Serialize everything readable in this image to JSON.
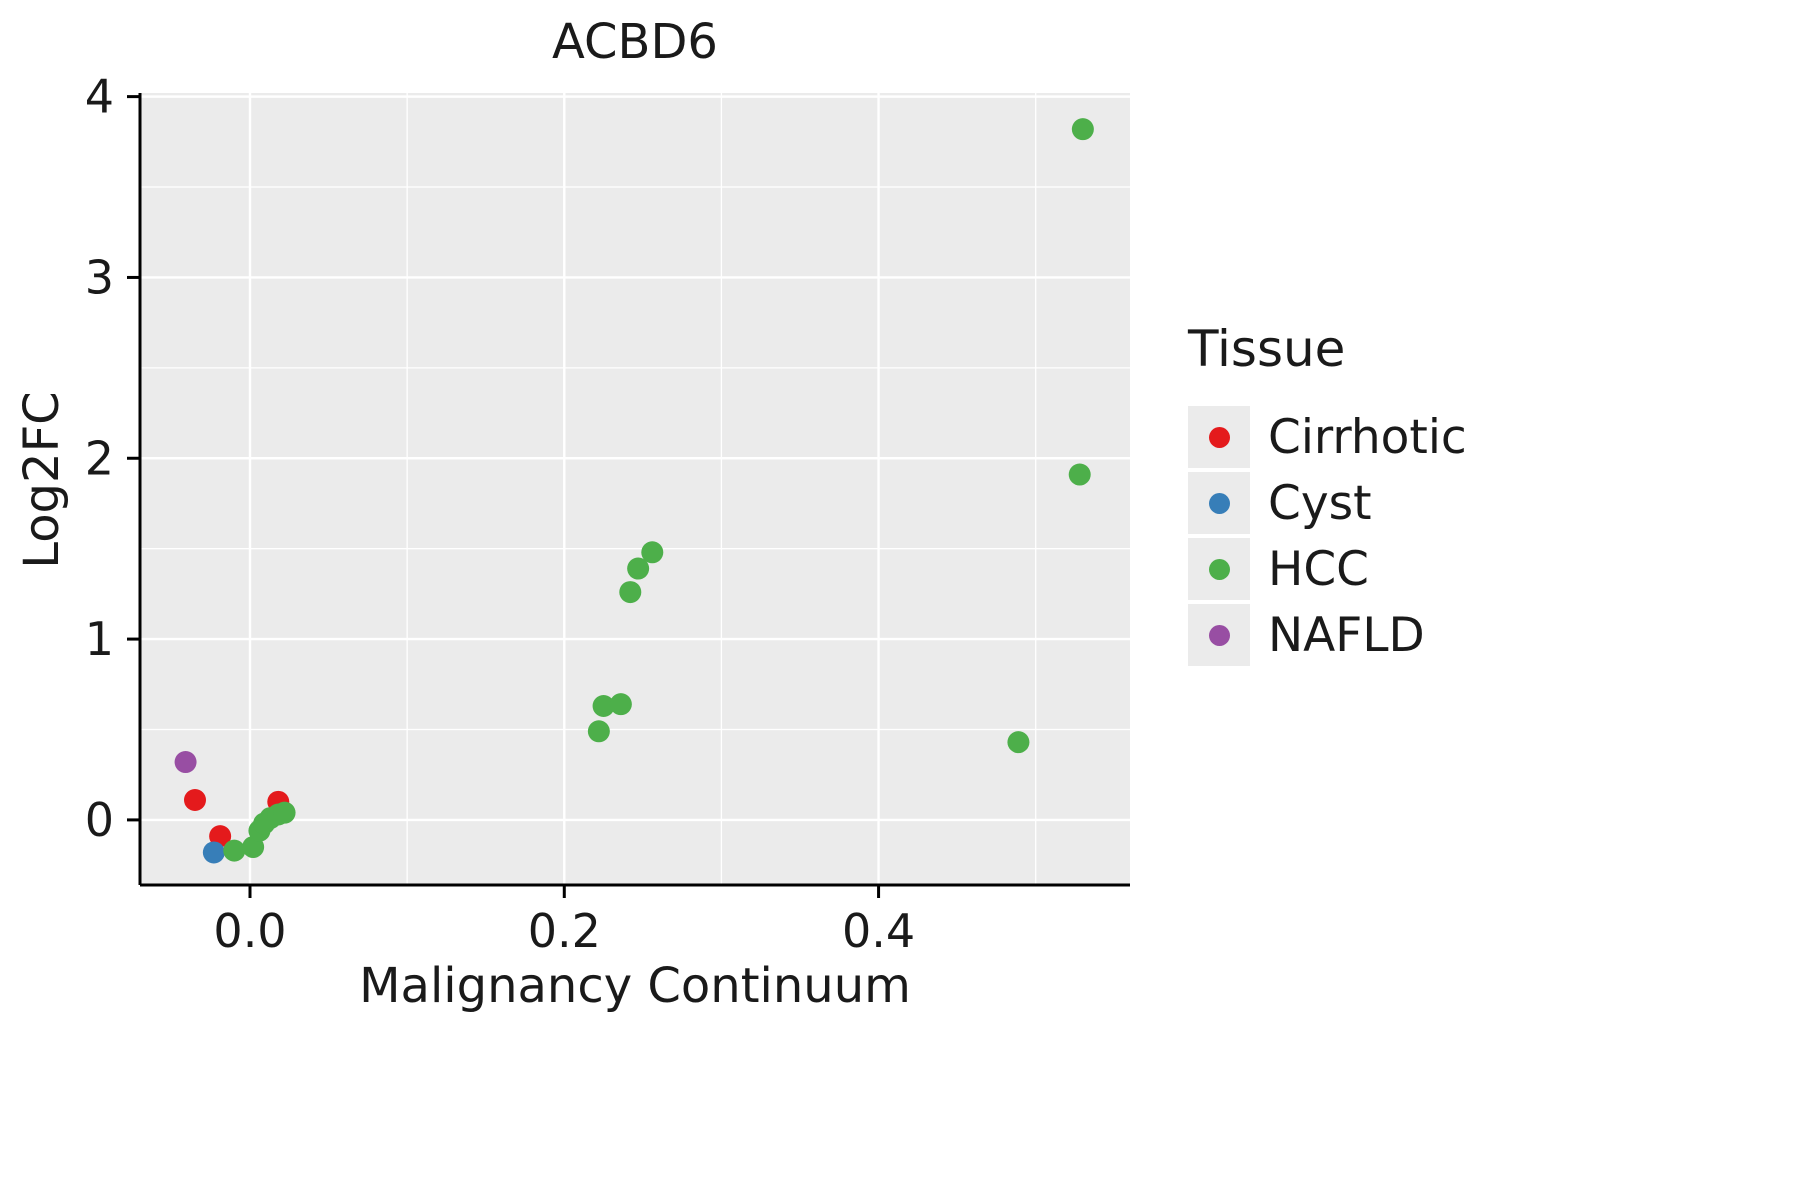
{
  "chart_data": {
    "type": "scatter",
    "title": "ACBD6",
    "xlabel": "Malignancy Continuum",
    "ylabel": "Log2FC",
    "legend_title": "Tissue",
    "legend_position": "right",
    "grid": true,
    "panel_bg": "#EBEBEB",
    "grid_color": "#FFFFFF",
    "axis_color": "#000000",
    "text_color": "#1a1a1a",
    "xlim": [
      -0.07,
      0.56
    ],
    "ylim": [
      -0.36,
      4.02
    ],
    "x_ticks": [
      0.0,
      0.2,
      0.4
    ],
    "x_tick_labels": [
      "0.0",
      "0.2",
      "0.4"
    ],
    "x_minor_ticks": [
      0.1,
      0.3,
      0.5
    ],
    "y_ticks": [
      0,
      1,
      2,
      3,
      4
    ],
    "y_tick_labels": [
      "0",
      "1",
      "2",
      "3",
      "4"
    ],
    "y_minor_ticks": [
      0.5,
      1.5,
      2.5,
      3.5
    ],
    "point_radius": 11,
    "series": [
      {
        "name": "Cirrhotic",
        "color": "#E41A1C",
        "points": [
          [
            -0.035,
            0.11
          ],
          [
            -0.019,
            -0.09
          ],
          [
            0.018,
            0.1
          ]
        ]
      },
      {
        "name": "Cyst",
        "color": "#377EB8",
        "points": [
          [
            -0.023,
            -0.18
          ]
        ]
      },
      {
        "name": "HCC",
        "color": "#4DAF4A",
        "points": [
          [
            -0.01,
            -0.17
          ],
          [
            0.002,
            -0.15
          ],
          [
            0.006,
            -0.06
          ],
          [
            0.009,
            -0.02
          ],
          [
            0.013,
            0.01
          ],
          [
            0.018,
            0.03
          ],
          [
            0.022,
            0.04
          ],
          [
            0.222,
            0.49
          ],
          [
            0.225,
            0.63
          ],
          [
            0.236,
            0.64
          ],
          [
            0.242,
            1.26
          ],
          [
            0.247,
            1.39
          ],
          [
            0.256,
            1.48
          ],
          [
            0.489,
            0.43
          ],
          [
            0.528,
            1.91
          ],
          [
            0.53,
            3.82
          ]
        ]
      },
      {
        "name": "NAFLD",
        "color": "#984EA3",
        "points": [
          [
            -0.041,
            0.32
          ]
        ]
      }
    ]
  }
}
